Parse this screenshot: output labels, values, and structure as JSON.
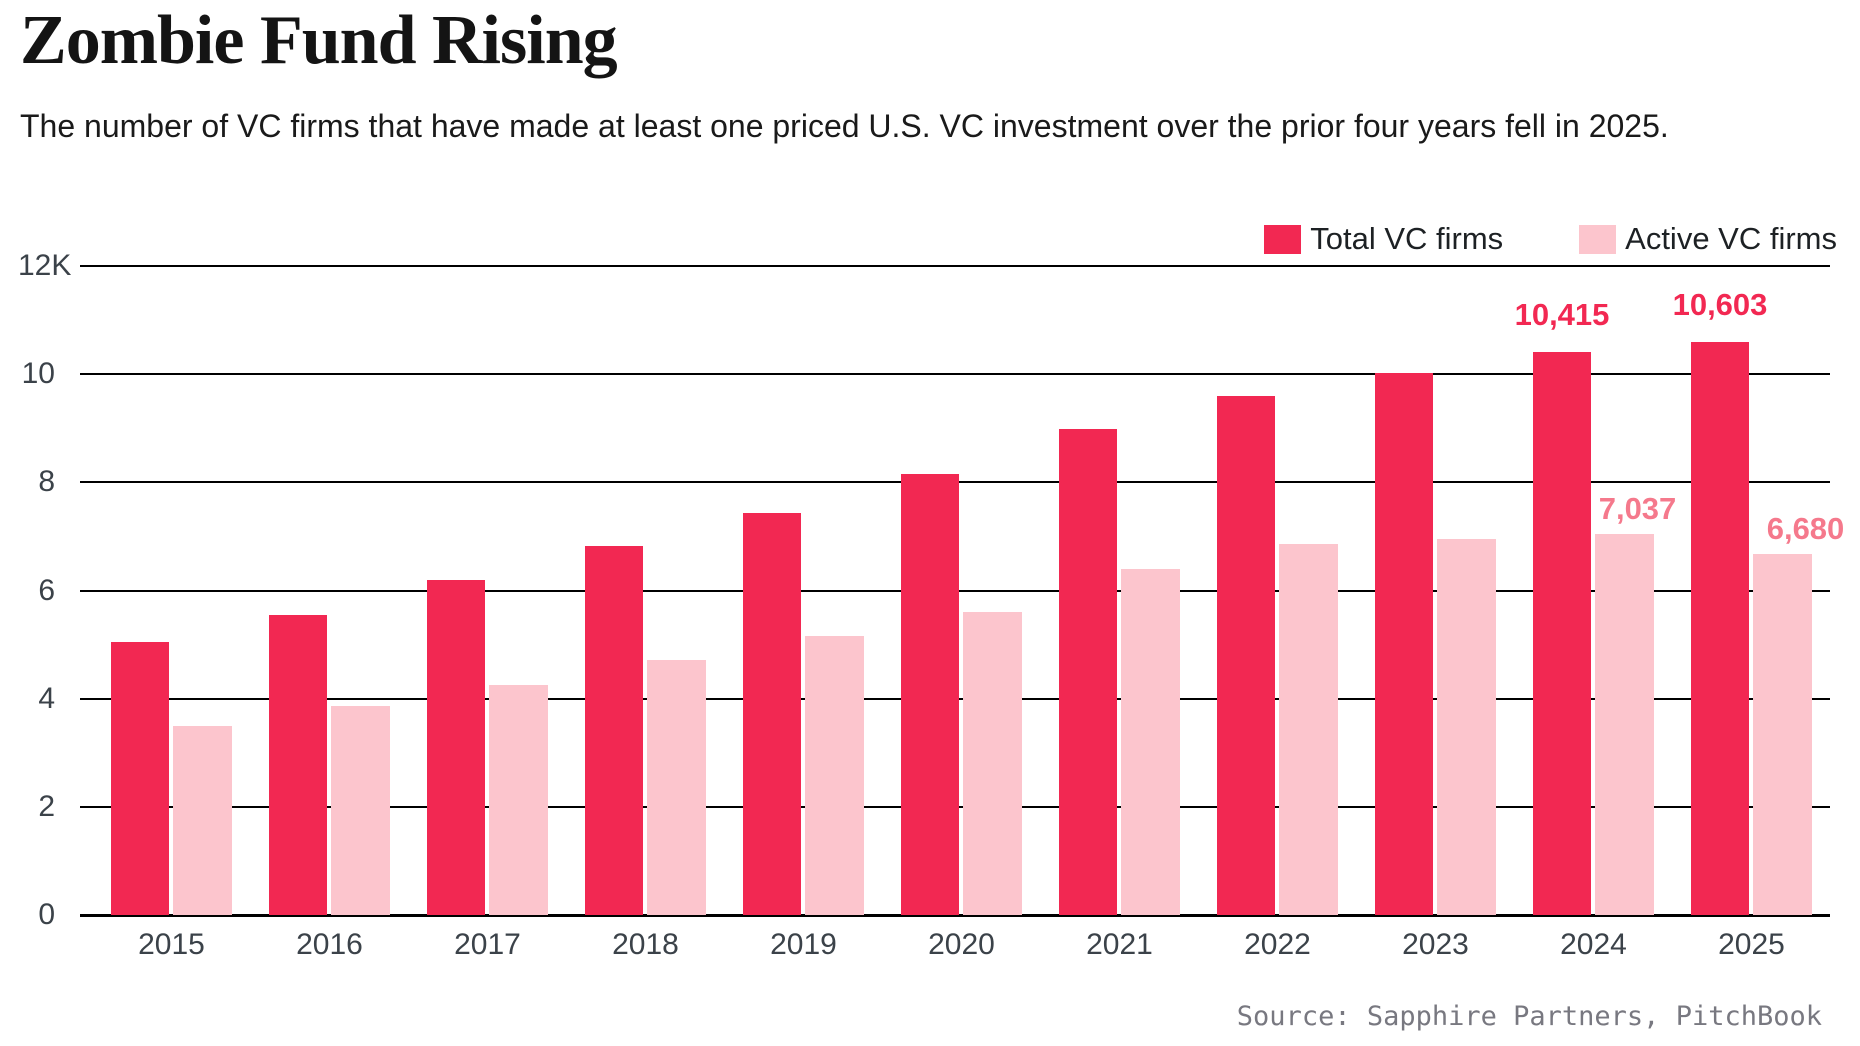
{
  "title": "Zombie Fund Rising",
  "subtitle": "The number of VC firms that have made at least one priced U.S. VC investment over the prior four years fell in 2025.",
  "source": "Source: Sapphire Partners, PitchBook",
  "colors": {
    "total_bar": "#F22852",
    "active_bar": "#FCC5CD",
    "total_label": "#F22852",
    "active_label": "#F5798C",
    "axis_text": "#3B4249",
    "gridline": "#000000"
  },
  "legend": [
    {
      "label": "Total VC firms",
      "color": "#F22852"
    },
    {
      "label": "Active VC firms",
      "color": "#FCC5CD"
    }
  ],
  "chart_data": {
    "type": "bar",
    "categories": [
      "2015",
      "2016",
      "2017",
      "2018",
      "2019",
      "2020",
      "2021",
      "2022",
      "2023",
      "2024",
      "2025"
    ],
    "series": [
      {
        "name": "Total VC firms",
        "color": "#F22852",
        "values": [
          5050,
          5550,
          6200,
          6830,
          7440,
          8150,
          8980,
          9590,
          10020,
          10415,
          10603
        ]
      },
      {
        "name": "Active VC firms",
        "color": "#FCC5CD",
        "values": [
          3490,
          3870,
          4260,
          4710,
          5150,
          5600,
          6400,
          6860,
          6960,
          7037,
          6680
        ]
      }
    ],
    "ylabel": "",
    "xlabel": "",
    "ylim": [
      0,
      12000
    ],
    "y_ticks": [
      "0",
      "2",
      "4",
      "6",
      "8",
      "10",
      "12K"
    ],
    "y_tick_values": [
      0,
      2000,
      4000,
      6000,
      8000,
      10000,
      12000
    ],
    "grid": true,
    "legend_position": "top-right",
    "annotations": [
      {
        "series": "Total VC firms",
        "category": "2024",
        "text": "10,415",
        "color": "#F22852"
      },
      {
        "series": "Total VC firms",
        "category": "2025",
        "text": "10,603",
        "color": "#F22852"
      },
      {
        "series": "Active VC firms",
        "category": "2024",
        "text": "7,037",
        "color": "#F5798C"
      },
      {
        "series": "Active VC firms",
        "category": "2025",
        "text": "6,680",
        "color": "#F5798C"
      }
    ]
  }
}
